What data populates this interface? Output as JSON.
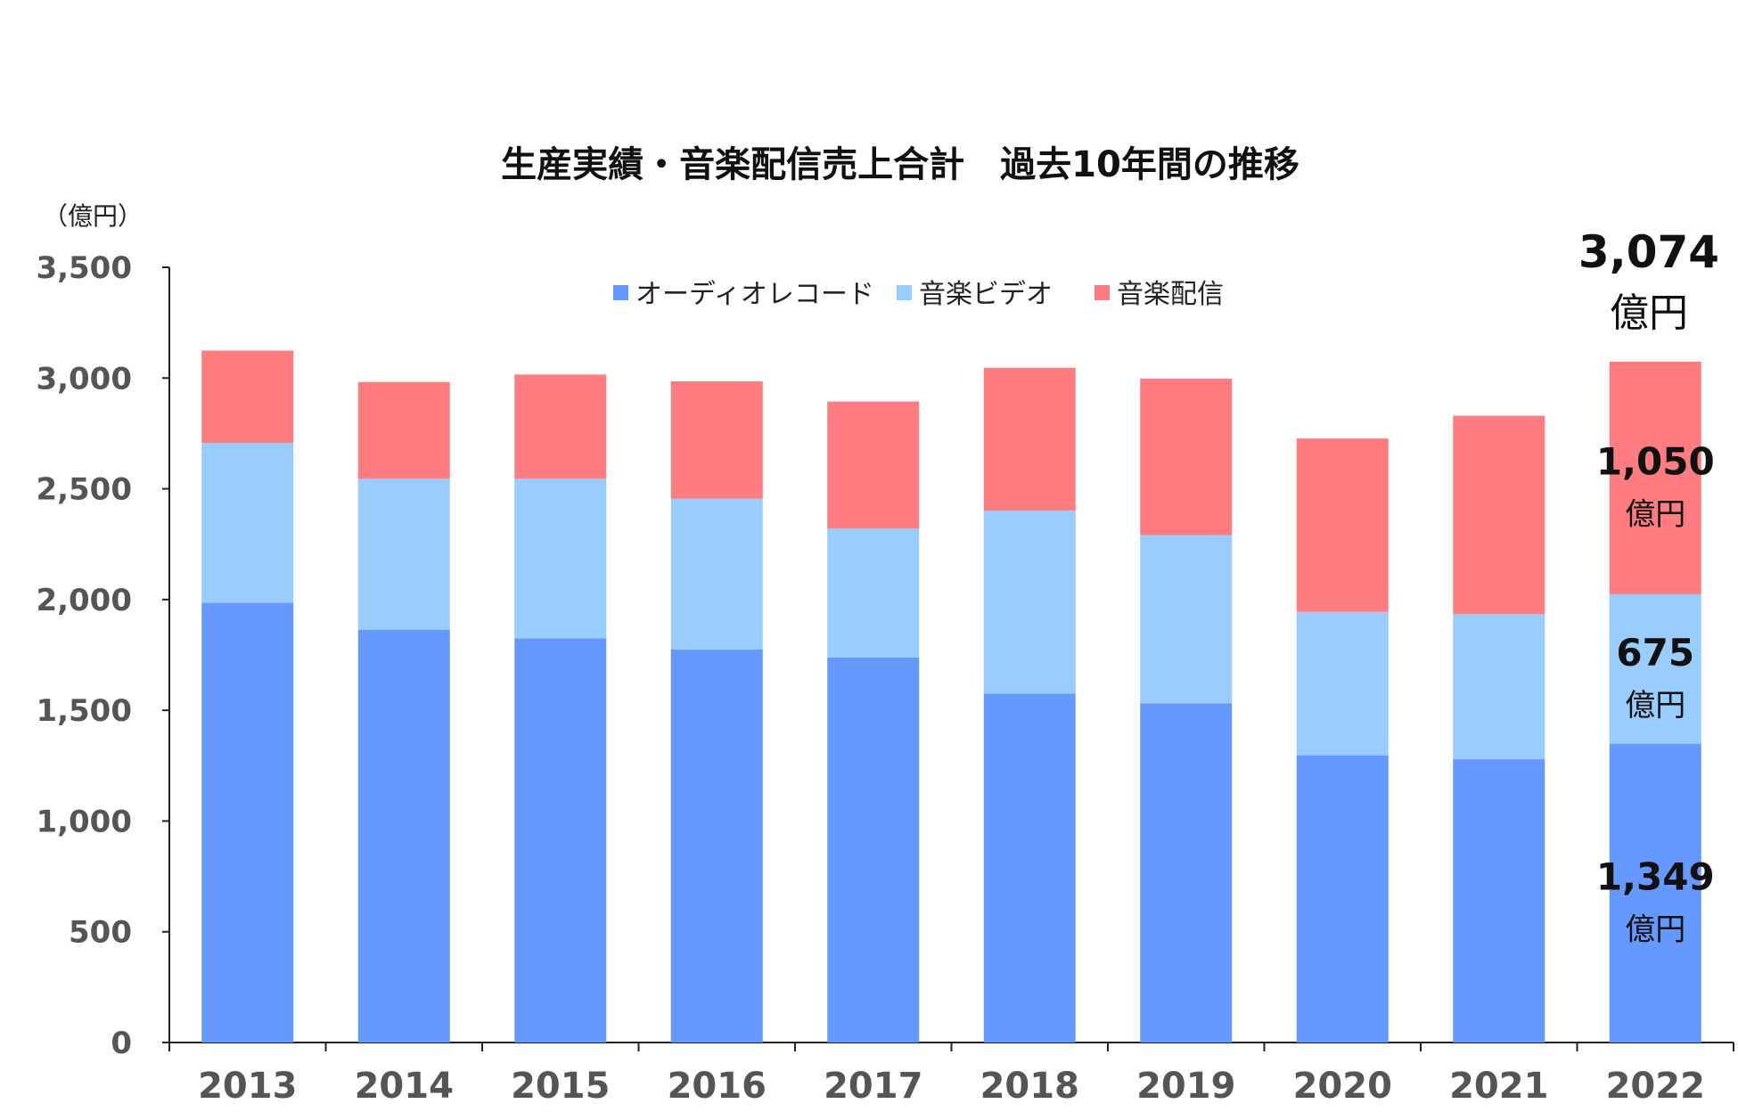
{
  "chart_data": {
    "type": "bar",
    "stacked": true,
    "title": "生産実績・音楽配信売上合計　過去10年間の推移",
    "unit_label": "（億円）",
    "categories": [
      "2013",
      "2014",
      "2015",
      "2016",
      "2017",
      "2018",
      "2019",
      "2020",
      "2021",
      "2022"
    ],
    "series": [
      {
        "name": "オーディオレコード",
        "color": "#6699ff",
        "values": [
          1985,
          1864,
          1825,
          1775,
          1739,
          1576,
          1531,
          1297,
          1279,
          1349
        ]
      },
      {
        "name": "音楽ビデオ",
        "color": "#99ccff",
        "values": [
          722,
          681,
          720,
          681,
          582,
          825,
          760,
          647,
          656,
          675
        ]
      },
      {
        "name": "音楽配信",
        "color": "#ff7c80",
        "values": [
          417,
          437,
          471,
          529,
          573,
          645,
          706,
          783,
          895,
          1050
        ]
      }
    ],
    "ylim": [
      0,
      3500
    ],
    "yticks": [
      "0",
      "500",
      "1,000",
      "1,500",
      "2,000",
      "2,500",
      "3,000",
      "3,500"
    ],
    "legend_position": "top-center",
    "annotations": {
      "total": {
        "value": "3,074",
        "unit": "億円"
      },
      "segments": [
        {
          "value": "1,349",
          "unit": "億円"
        },
        {
          "value": "675",
          "unit": "億円"
        },
        {
          "value": "1,050",
          "unit": "億円"
        }
      ]
    }
  }
}
